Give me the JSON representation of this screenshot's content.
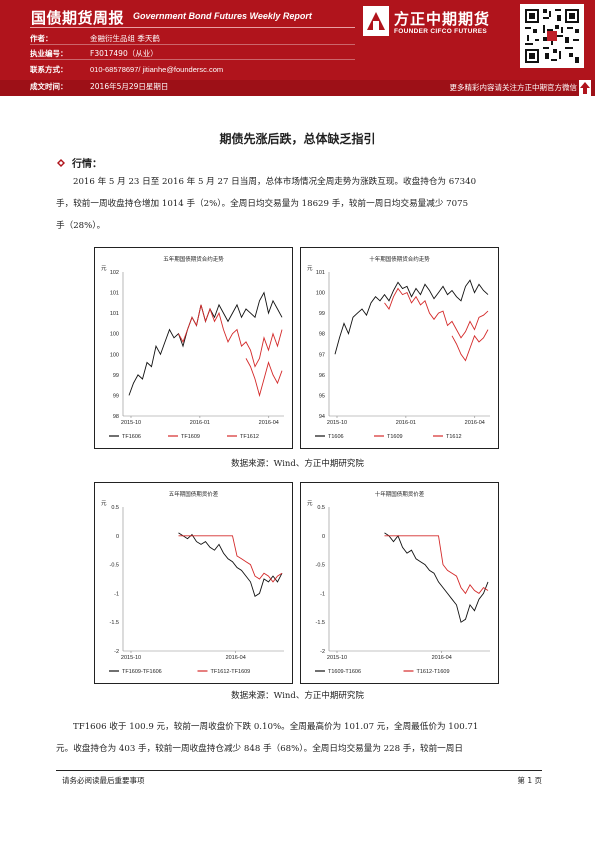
{
  "header": {
    "title_cn": "国债期货周报",
    "title_en": "Government Bond Futures Weekly Report",
    "meta": [
      {
        "label": "作者：",
        "value": "金融衍生品组  季天鹤"
      },
      {
        "label": "执业编号：",
        "value": "F3017490（从业）"
      },
      {
        "label": "联系方式：",
        "value": "010-68578697/ jitianhe@foundersc.com"
      },
      {
        "label": "成文时间：",
        "value": "2016年5月29日星期日"
      }
    ],
    "logo_cn": "方正中期期货",
    "logo_en": "FOUNDER CIFCO FUTURES",
    "subscribe": "更多精彩内容请关注方正中期官方微信",
    "colors": {
      "band": "#b0141c",
      "band_dark": "#9d1017"
    }
  },
  "doc_title": "期债先涨后跌，总体缺乏指引",
  "section": {
    "title": "行情："
  },
  "para1": [
    "2016 年 5 月 23 日至 2016 年 5 月 27 日当周，总体市场情况全周走势为涨跌互现。收盘持仓为 67340",
    "手，较前一周收盘持仓增加 1014 手（2%）。全周日均交易量为 18629 手，较前一周日均交易量减少 7075",
    "手（28%）。"
  ],
  "caption1": "数据来源：Wind、方正中期研究院",
  "caption2": "数据来源：Wind、方正中期研究院",
  "para2": [
    "TF1606 收于 100.9 元，较前一周收盘价下跌 0.10%。全周最高价为 101.07 元，全周最低价为 100.71",
    "元。收盘持仓为 403 手，较前一周收盘持仓减少 848 手（68%）。全周日均交易量为 228 手，较前一周日"
  ],
  "footer": {
    "left": "请务必阅读最后重要事项",
    "right": "第 1 页"
  },
  "chart_data": [
    {
      "type": "line",
      "title": "五年期国债期货合约走势",
      "ylabel": "元",
      "yticks": [
        "102",
        "101",
        "101",
        "100",
        "100",
        "99",
        "99",
        "98"
      ],
      "ylim": [
        98.5,
        102
      ],
      "xticks": [
        "2015-10",
        "2016-01",
        "2016-04"
      ],
      "series": [
        {
          "name": "TF1606",
          "color": "#111111",
          "values": [
            99.0,
            99.3,
            99.5,
            99.4,
            99.8,
            99.7,
            100.2,
            100.0,
            100.3,
            100.6,
            100.4,
            100.5,
            100.2,
            100.6,
            100.9,
            100.7,
            101.2,
            100.8,
            101.1,
            100.9,
            101.2,
            101.0,
            100.8,
            101.0,
            101.2,
            100.9,
            101.1,
            101.0,
            100.9,
            101.3,
            101.5,
            101.0,
            101.3,
            101.1,
            100.9
          ]
        },
        {
          "name": "TF1609",
          "color": "#d42a2a",
          "values": [
            null,
            null,
            null,
            null,
            null,
            null,
            null,
            null,
            null,
            null,
            null,
            100.5,
            100.3,
            100.6,
            100.9,
            100.7,
            101.2,
            100.8,
            101.1,
            100.8,
            101.0,
            100.6,
            100.3,
            100.5,
            100.6,
            100.2,
            100.3,
            100.1,
            99.7,
            99.9,
            100.4,
            100.1,
            100.5,
            100.2,
            100.6
          ]
        },
        {
          "name": "TF1612",
          "color": "#d42a2a",
          "values": [
            null,
            null,
            null,
            null,
            null,
            null,
            null,
            null,
            null,
            null,
            null,
            null,
            null,
            null,
            null,
            null,
            null,
            null,
            null,
            null,
            null,
            null,
            null,
            null,
            null,
            null,
            99.9,
            99.7,
            99.4,
            99.0,
            99.4,
            99.8,
            99.5,
            99.3,
            99.6
          ]
        }
      ]
    },
    {
      "type": "line",
      "title": "十年期国债期货合约走势",
      "ylabel": "元",
      "yticks": [
        "101",
        "100",
        "99",
        "98",
        "97",
        "96",
        "95",
        "94"
      ],
      "ylim": [
        94,
        101
      ],
      "xticks": [
        "2015-10",
        "2016-01",
        "2016-04"
      ],
      "series": [
        {
          "name": "T1606",
          "color": "#111111",
          "values": [
            97.0,
            97.8,
            98.5,
            98.0,
            98.8,
            99.0,
            99.2,
            98.9,
            99.5,
            99.8,
            99.6,
            99.9,
            99.6,
            100.1,
            100.5,
            100.2,
            100.3,
            99.8,
            100.2,
            99.9,
            100.4,
            100.1,
            99.7,
            100.0,
            100.3,
            99.9,
            100.1,
            99.8,
            99.6,
            100.3,
            100.6,
            100.0,
            100.4,
            100.1,
            99.9
          ]
        },
        {
          "name": "T1609",
          "color": "#d42a2a",
          "values": [
            null,
            null,
            null,
            null,
            null,
            null,
            null,
            null,
            null,
            null,
            null,
            99.5,
            99.2,
            99.8,
            100.2,
            99.9,
            100.0,
            99.5,
            99.8,
            99.4,
            99.6,
            99.0,
            98.7,
            99.0,
            99.1,
            98.4,
            98.6,
            98.2,
            97.8,
            98.1,
            98.6,
            98.2,
            98.8,
            98.9,
            99.1
          ]
        },
        {
          "name": "T1612",
          "color": "#d42a2a",
          "values": [
            null,
            null,
            null,
            null,
            null,
            null,
            null,
            null,
            null,
            null,
            null,
            null,
            null,
            null,
            null,
            null,
            null,
            null,
            null,
            null,
            null,
            null,
            null,
            null,
            null,
            null,
            97.9,
            97.5,
            97.0,
            96.7,
            97.3,
            97.9,
            97.6,
            97.8,
            98.2
          ]
        }
      ]
    },
    {
      "type": "line",
      "title": "五年期国债期货价差",
      "ylabel": "元",
      "yticks": [
        "0.5",
        "0",
        "-0.5",
        "-1",
        "-1.5",
        "-2"
      ],
      "ylim": [
        -2,
        0.5
      ],
      "xticks": [
        "2015-10",
        "2016-04"
      ],
      "series": [
        {
          "name": "TF1609-TF1606",
          "color": "#111111",
          "values": [
            null,
            null,
            null,
            null,
            null,
            null,
            null,
            null,
            null,
            null,
            null,
            0.05,
            0.0,
            -0.05,
            0.02,
            -0.1,
            -0.15,
            -0.1,
            -0.2,
            -0.25,
            -0.15,
            -0.3,
            -0.4,
            -0.45,
            -0.55,
            -0.6,
            -0.7,
            -0.8,
            -1.05,
            -1.0,
            -0.75,
            -0.8,
            -0.7,
            -0.8,
            -0.65
          ]
        },
        {
          "name": "TF1612-TF1609",
          "color": "#d42a2a",
          "values": [
            null,
            null,
            null,
            null,
            null,
            null,
            null,
            null,
            null,
            null,
            null,
            0.0,
            0.0,
            0.0,
            0.0,
            0.0,
            0.0,
            0.0,
            0.0,
            0.0,
            0.0,
            0.0,
            0.0,
            0.0,
            -0.35,
            -0.4,
            -0.45,
            -0.5,
            -0.7,
            -0.75,
            -0.65,
            -0.7,
            -0.8,
            -0.7,
            -0.65
          ]
        }
      ]
    },
    {
      "type": "line",
      "title": "十年期国债期货价差",
      "ylabel": "元",
      "yticks": [
        "0.5",
        "0",
        "-0.5",
        "-1",
        "-1.5",
        "-2"
      ],
      "ylim": [
        -2,
        0.5
      ],
      "xticks": [
        "2015-10",
        "2016-04"
      ],
      "series": [
        {
          "name": "T1609-T1606",
          "color": "#111111",
          "values": [
            null,
            null,
            null,
            null,
            null,
            null,
            null,
            null,
            null,
            null,
            null,
            0.05,
            0.0,
            -0.1,
            0.0,
            -0.2,
            -0.3,
            -0.25,
            -0.4,
            -0.45,
            -0.5,
            -0.6,
            -0.65,
            -0.8,
            -0.9,
            -1.0,
            -1.1,
            -1.2,
            -1.5,
            -1.45,
            -1.2,
            -1.3,
            -1.1,
            -1.0,
            -0.8
          ]
        },
        {
          "name": "T1612-T1609",
          "color": "#d42a2a",
          "values": [
            null,
            null,
            null,
            null,
            null,
            null,
            null,
            null,
            null,
            null,
            null,
            0.0,
            0.0,
            0.0,
            0.0,
            0.0,
            0.0,
            0.0,
            0.0,
            0.0,
            0.0,
            0.0,
            0.0,
            0.0,
            -0.5,
            -0.6,
            -0.65,
            -0.7,
            -0.9,
            -1.0,
            -0.85,
            -0.95,
            -1.0,
            -0.9,
            -0.95
          ]
        }
      ]
    }
  ]
}
